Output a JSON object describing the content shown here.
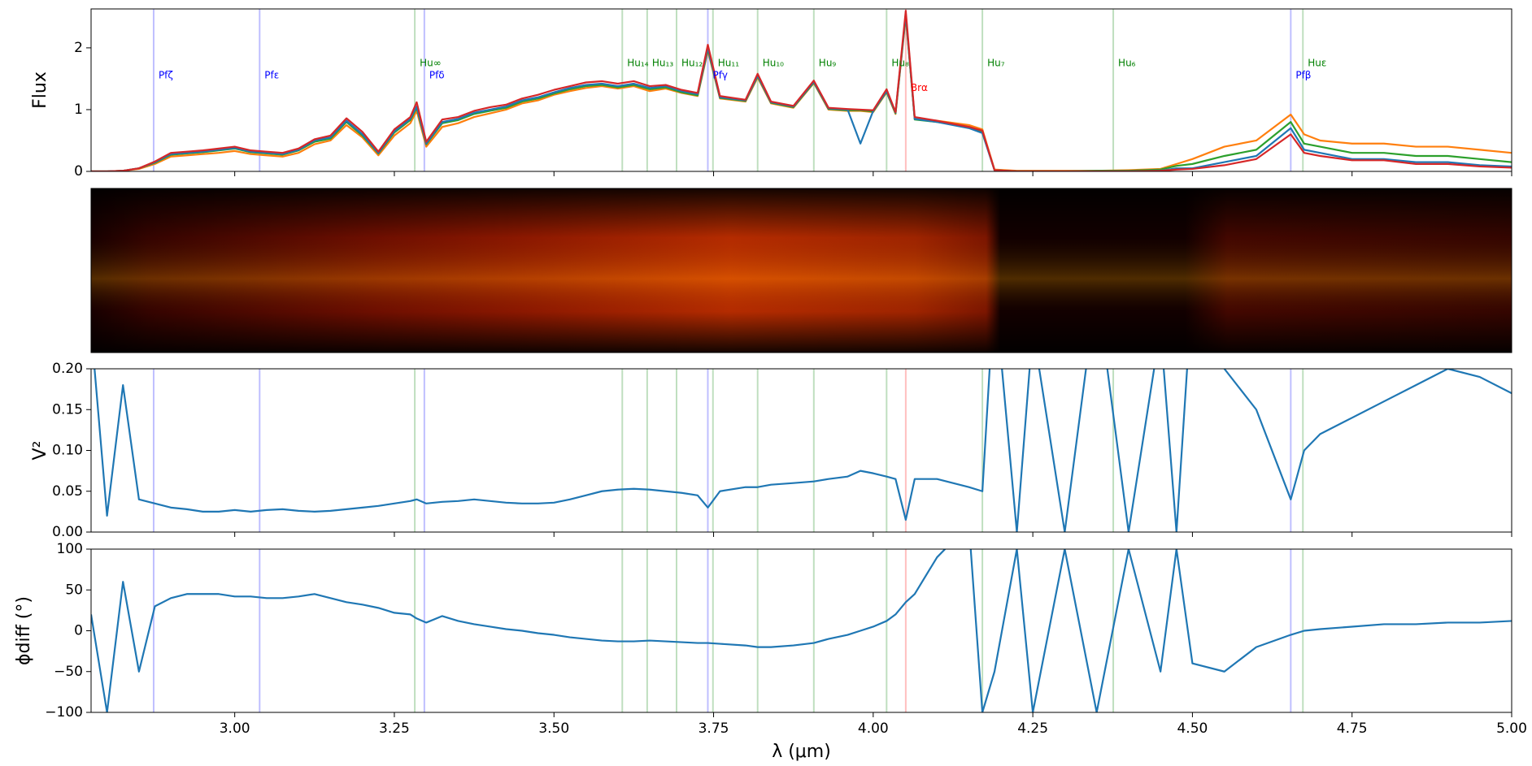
{
  "chart_data": [
    {
      "type": "line",
      "ylabel": "Flux",
      "xlim": [
        2.775,
        5.0
      ],
      "ylim": [
        0,
        2.63
      ],
      "yticks": [
        0,
        1,
        2
      ],
      "x": [
        2.775,
        2.8,
        2.825,
        2.85,
        2.875,
        2.9,
        2.925,
        2.95,
        2.975,
        3.0,
        3.025,
        3.05,
        3.075,
        3.1,
        3.125,
        3.15,
        3.175,
        3.2,
        3.225,
        3.25,
        3.275,
        3.285,
        3.3,
        3.325,
        3.35,
        3.375,
        3.4,
        3.425,
        3.45,
        3.475,
        3.5,
        3.525,
        3.55,
        3.575,
        3.6,
        3.625,
        3.65,
        3.675,
        3.7,
        3.725,
        3.741,
        3.76,
        3.8,
        3.819,
        3.84,
        3.875,
        3.907,
        3.93,
        3.96,
        3.98,
        4.0,
        4.021,
        4.035,
        4.051,
        4.065,
        4.1,
        4.15,
        4.171,
        4.19,
        4.225,
        4.25,
        4.3,
        4.35,
        4.4,
        4.45,
        4.475,
        4.5,
        4.55,
        4.6,
        4.654,
        4.675,
        4.7,
        4.75,
        4.8,
        4.85,
        4.9,
        4.95,
        5.0
      ],
      "series": [
        {
          "color": "#ff7f0e",
          "values": [
            0,
            0,
            0.01,
            0.04,
            0.12,
            0.24,
            0.26,
            0.28,
            0.3,
            0.33,
            0.28,
            0.26,
            0.24,
            0.3,
            0.44,
            0.5,
            0.75,
            0.55,
            0.26,
            0.58,
            0.78,
            0.98,
            0.4,
            0.72,
            0.78,
            0.88,
            0.94,
            1.0,
            1.1,
            1.15,
            1.24,
            1.3,
            1.35,
            1.38,
            1.34,
            1.38,
            1.3,
            1.34,
            1.27,
            1.22,
            1.95,
            1.18,
            1.13,
            1.52,
            1.1,
            1.03,
            1.43,
            1.0,
            0.98,
            0.98,
            0.96,
            1.28,
            0.93,
            2.5,
            0.85,
            0.82,
            0.75,
            0.68,
            0.03,
            0.01,
            0.01,
            0.01,
            0.01,
            0.02,
            0.04,
            0.12,
            0.2,
            0.4,
            0.5,
            0.92,
            0.6,
            0.5,
            0.45,
            0.45,
            0.4,
            0.4,
            0.35,
            0.3
          ]
        },
        {
          "color": "#2ca02c",
          "values": [
            0,
            0,
            0.01,
            0.05,
            0.14,
            0.27,
            0.29,
            0.31,
            0.34,
            0.37,
            0.31,
            0.29,
            0.27,
            0.34,
            0.48,
            0.53,
            0.8,
            0.58,
            0.29,
            0.63,
            0.83,
            1.03,
            0.44,
            0.78,
            0.83,
            0.93,
            0.98,
            1.03,
            1.13,
            1.18,
            1.26,
            1.33,
            1.38,
            1.4,
            1.36,
            1.4,
            1.33,
            1.36,
            1.28,
            1.23,
            1.98,
            1.19,
            1.14,
            1.54,
            1.11,
            1.04,
            1.44,
            1.01,
            0.99,
            0.99,
            0.97,
            1.29,
            0.94,
            2.52,
            0.84,
            0.8,
            0.72,
            0.64,
            0.02,
            0,
            0,
            0,
            0.01,
            0.01,
            0.03,
            0.09,
            0.12,
            0.25,
            0.35,
            0.8,
            0.45,
            0.4,
            0.3,
            0.3,
            0.25,
            0.25,
            0.2,
            0.15
          ]
        },
        {
          "color": "#1f77b4",
          "values": [
            0,
            0,
            0.01,
            0.05,
            0.15,
            0.28,
            0.3,
            0.32,
            0.35,
            0.38,
            0.32,
            0.3,
            0.28,
            0.35,
            0.5,
            0.55,
            0.82,
            0.6,
            0.3,
            0.65,
            0.85,
            1.05,
            0.45,
            0.8,
            0.85,
            0.95,
            1.0,
            1.05,
            1.15,
            1.2,
            1.28,
            1.35,
            1.4,
            1.42,
            1.38,
            1.42,
            1.35,
            1.38,
            1.3,
            1.25,
            2.0,
            1.2,
            1.15,
            1.55,
            1.12,
            1.05,
            1.45,
            1.02,
            1.0,
            0.45,
            0.98,
            1.3,
            0.95,
            2.55,
            0.85,
            0.8,
            0.7,
            0.62,
            0.02,
            0,
            0,
            0,
            0,
            0,
            0.01,
            0.05,
            0.05,
            0.15,
            0.25,
            0.7,
            0.35,
            0.3,
            0.2,
            0.2,
            0.15,
            0.15,
            0.1,
            0.08
          ]
        },
        {
          "color": "#d62728",
          "values": [
            0,
            0,
            0.01,
            0.05,
            0.16,
            0.3,
            0.32,
            0.34,
            0.37,
            0.4,
            0.34,
            0.32,
            0.3,
            0.37,
            0.52,
            0.58,
            0.86,
            0.64,
            0.32,
            0.68,
            0.88,
            1.12,
            0.48,
            0.84,
            0.88,
            0.98,
            1.04,
            1.08,
            1.18,
            1.24,
            1.32,
            1.38,
            1.44,
            1.46,
            1.42,
            1.46,
            1.38,
            1.4,
            1.32,
            1.27,
            2.05,
            1.22,
            1.16,
            1.58,
            1.13,
            1.06,
            1.47,
            1.03,
            1.01,
            1.0,
            0.99,
            1.33,
            0.96,
            2.6,
            0.88,
            0.82,
            0.72,
            0.66,
            0.02,
            0,
            0,
            0,
            0,
            0,
            0.01,
            0.03,
            0.04,
            0.1,
            0.2,
            0.6,
            0.3,
            0.25,
            0.18,
            0.18,
            0.12,
            0.12,
            0.08,
            0.06
          ]
        }
      ],
      "spectral_lines": [
        {
          "label": "Pfζ",
          "wavelength": 2.873,
          "color": "#0000ff"
        },
        {
          "label": "Pfε",
          "wavelength": 3.039,
          "color": "#0000ff"
        },
        {
          "label": "Hu∞",
          "wavelength": 3.282,
          "color": "#008000"
        },
        {
          "label": "Pfδ",
          "wavelength": 3.297,
          "color": "#0000ff"
        },
        {
          "label": "Hu₁₄",
          "wavelength": 3.607,
          "color": "#008000"
        },
        {
          "label": "Hu₁₃",
          "wavelength": 3.646,
          "color": "#008000"
        },
        {
          "label": "Hu₁₂",
          "wavelength": 3.692,
          "color": "#008000"
        },
        {
          "label": "Pfγ",
          "wavelength": 3.741,
          "color": "#0000ff"
        },
        {
          "label": "Hu₁₁",
          "wavelength": 3.749,
          "color": "#008000"
        },
        {
          "label": "Hu₁₀",
          "wavelength": 3.819,
          "color": "#008000"
        },
        {
          "label": "Hu₉",
          "wavelength": 3.907,
          "color": "#008000"
        },
        {
          "label": "Hu₈",
          "wavelength": 4.021,
          "color": "#008000"
        },
        {
          "label": "Brα",
          "wavelength": 4.051,
          "color": "#ff0000"
        },
        {
          "label": "Hu₇",
          "wavelength": 4.171,
          "color": "#008000"
        },
        {
          "label": "Hu₆",
          "wavelength": 4.376,
          "color": "#008000"
        },
        {
          "label": "Pfβ",
          "wavelength": 4.654,
          "color": "#0000ff"
        },
        {
          "label": "Huε",
          "wavelength": 4.673,
          "color": "#008000"
        }
      ]
    },
    {
      "type": "line",
      "ylabel": "V²",
      "xlim": [
        2.775,
        5.0
      ],
      "ylim": [
        0,
        0.2
      ],
      "yticks": [
        {
          "value": 0,
          "label": "0.00"
        },
        {
          "value": 0.05,
          "label": "0.05"
        },
        {
          "value": 0.1,
          "label": "0.10"
        },
        {
          "value": 0.15,
          "label": "0.15"
        },
        {
          "value": 0.2,
          "label": "0.20"
        }
      ],
      "x": [
        2.775,
        2.8,
        2.825,
        2.85,
        2.875,
        2.9,
        2.925,
        2.95,
        2.975,
        3.0,
        3.025,
        3.05,
        3.075,
        3.1,
        3.125,
        3.15,
        3.175,
        3.2,
        3.225,
        3.25,
        3.275,
        3.285,
        3.3,
        3.325,
        3.35,
        3.375,
        3.4,
        3.425,
        3.45,
        3.475,
        3.5,
        3.525,
        3.55,
        3.575,
        3.6,
        3.625,
        3.65,
        3.675,
        3.7,
        3.725,
        3.741,
        3.76,
        3.8,
        3.819,
        3.84,
        3.875,
        3.907,
        3.93,
        3.96,
        3.98,
        4.0,
        4.021,
        4.035,
        4.051,
        4.065,
        4.1,
        4.15,
        4.171,
        4.19,
        4.225,
        4.25,
        4.3,
        4.35,
        4.4,
        4.45,
        4.475,
        4.5,
        4.55,
        4.6,
        4.654,
        4.675,
        4.7,
        4.75,
        4.8,
        4.85,
        4.9,
        4.95,
        5.0
      ],
      "series": [
        {
          "color": "#1f77b4",
          "values": [
            0.25,
            0.02,
            0.18,
            0.04,
            0.035,
            0.03,
            0.028,
            0.025,
            0.025,
            0.027,
            0.025,
            0.027,
            0.028,
            0.026,
            0.025,
            0.026,
            0.028,
            0.03,
            0.032,
            0.035,
            0.038,
            0.04,
            0.035,
            0.037,
            0.038,
            0.04,
            0.038,
            0.036,
            0.035,
            0.035,
            0.036,
            0.04,
            0.045,
            0.05,
            0.052,
            0.053,
            0.052,
            0.05,
            0.048,
            0.045,
            0.03,
            0.05,
            0.055,
            0.055,
            0.058,
            0.06,
            0.062,
            0.065,
            0.068,
            0.075,
            0.072,
            0.068,
            0.065,
            0.015,
            0.065,
            0.065,
            0.055,
            0.05,
            0.3,
            0,
            0.25,
            0,
            0.3,
            0,
            0.25,
            0,
            0.3,
            0.2,
            0.15,
            0.04,
            0.1,
            0.12,
            0.14,
            0.16,
            0.18,
            0.2,
            0.19,
            0.17
          ]
        }
      ]
    },
    {
      "type": "line",
      "ylabel": "ϕdiff (°)",
      "xlabel": "λ (μm)",
      "xlim": [
        2.775,
        5.0
      ],
      "ylim": [
        -100,
        100
      ],
      "yticks": [
        {
          "value": -100,
          "label": "−100"
        },
        {
          "value": -50,
          "label": "−50"
        },
        0,
        50,
        100
      ],
      "xticks": [
        {
          "value": 3.0,
          "label": "3.00"
        },
        {
          "value": 3.25,
          "label": "3.25"
        },
        {
          "value": 3.5,
          "label": "3.50"
        },
        {
          "value": 3.75,
          "label": "3.75"
        },
        {
          "value": 4.0,
          "label": "4.00"
        },
        {
          "value": 4.25,
          "label": "4.25"
        },
        {
          "value": 4.5,
          "label": "4.50"
        },
        {
          "value": 4.75,
          "label": "4.75"
        },
        {
          "value": 5.0,
          "label": "5.00"
        }
      ],
      "x": [
        2.775,
        2.8,
        2.825,
        2.85,
        2.875,
        2.9,
        2.925,
        2.95,
        2.975,
        3.0,
        3.025,
        3.05,
        3.075,
        3.1,
        3.125,
        3.15,
        3.175,
        3.2,
        3.225,
        3.25,
        3.275,
        3.285,
        3.3,
        3.325,
        3.35,
        3.375,
        3.4,
        3.425,
        3.45,
        3.475,
        3.5,
        3.525,
        3.55,
        3.575,
        3.6,
        3.625,
        3.65,
        3.675,
        3.7,
        3.725,
        3.741,
        3.76,
        3.8,
        3.819,
        3.84,
        3.875,
        3.907,
        3.93,
        3.96,
        3.98,
        4.0,
        4.021,
        4.035,
        4.051,
        4.065,
        4.1,
        4.15,
        4.171,
        4.19,
        4.225,
        4.25,
        4.3,
        4.35,
        4.4,
        4.45,
        4.475,
        4.5,
        4.55,
        4.6,
        4.654,
        4.675,
        4.7,
        4.75,
        4.8,
        4.85,
        4.9,
        4.95,
        5.0
      ],
      "series": [
        {
          "color": "#1f77b4",
          "values": [
            20,
            -100,
            60,
            -50,
            30,
            40,
            45,
            45,
            45,
            42,
            42,
            40,
            40,
            42,
            45,
            40,
            35,
            32,
            28,
            22,
            20,
            15,
            10,
            18,
            12,
            8,
            5,
            2,
            0,
            -3,
            -5,
            -8,
            -10,
            -12,
            -13,
            -13,
            -12,
            -13,
            -14,
            -15,
            -15,
            -16,
            -18,
            -20,
            -20,
            -18,
            -15,
            -10,
            -5,
            0,
            5,
            12,
            20,
            35,
            45,
            90,
            130,
            -100,
            -50,
            100,
            -100,
            100,
            -100,
            100,
            -50,
            100,
            -40,
            -50,
            -20,
            -5,
            0,
            2,
            5,
            8,
            8,
            10,
            10,
            12
          ]
        }
      ]
    }
  ]
}
